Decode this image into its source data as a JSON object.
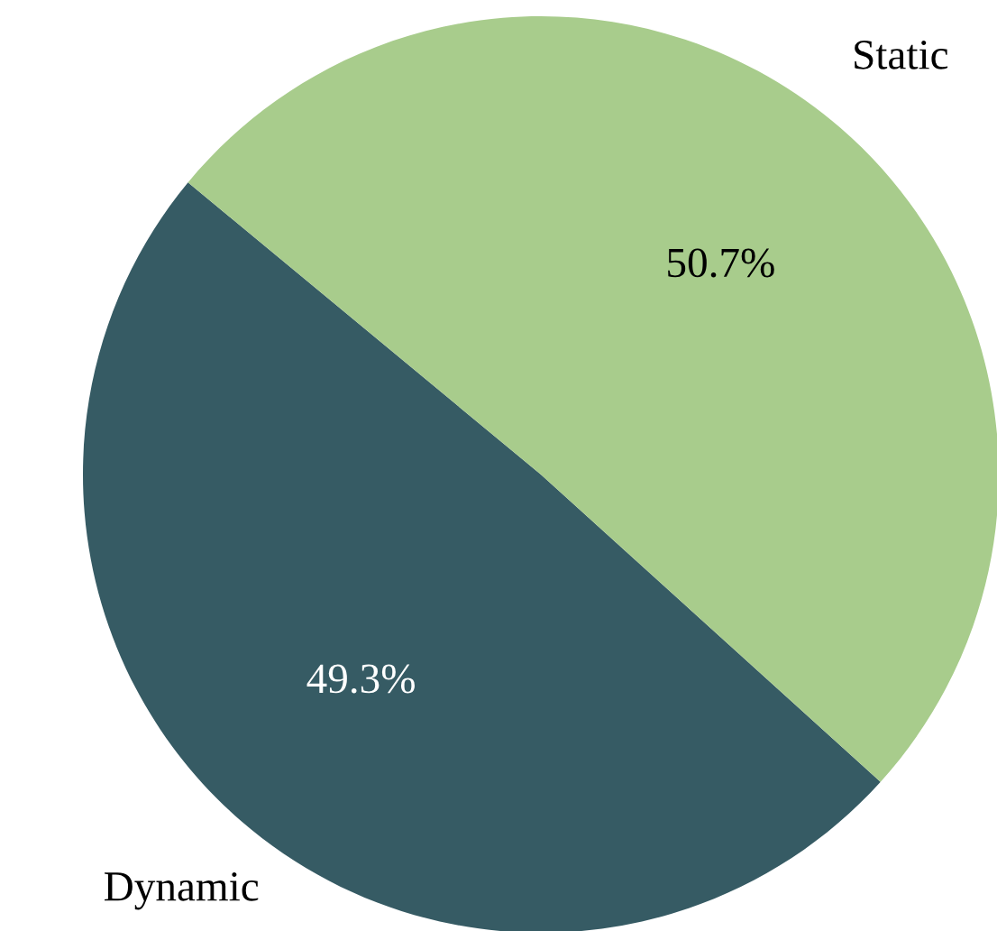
{
  "chart_data": {
    "type": "pie",
    "categories": [
      "Dynamic",
      "Static"
    ],
    "values": [
      49.3,
      50.7
    ],
    "colors": [
      "#365b64",
      "#a8cc8c"
    ],
    "value_labels": [
      "49.3%",
      "50.7%"
    ]
  }
}
